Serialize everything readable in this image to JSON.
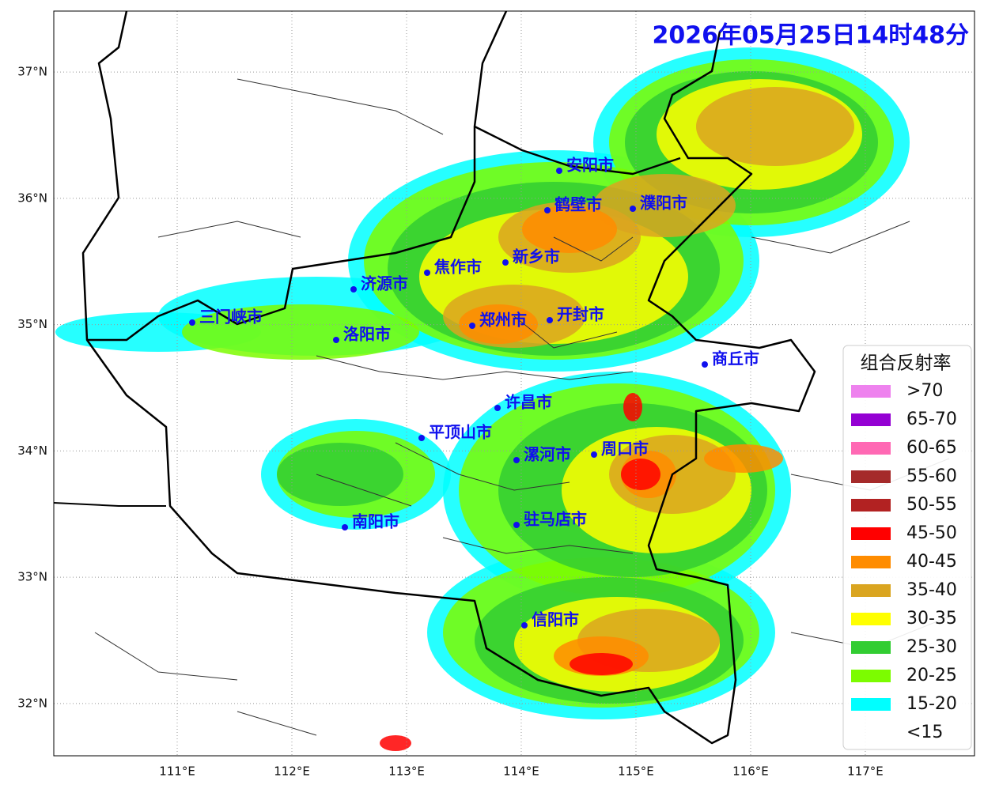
{
  "map": {
    "title": "2026年05月25日14时48分",
    "xlim": [
      109.924,
      117.952
    ],
    "ylim": [
      31.586,
      37.483
    ],
    "xticks": [
      {
        "value": 111,
        "label": "111°E"
      },
      {
        "value": 112,
        "label": "112°E"
      },
      {
        "value": 113,
        "label": "113°E"
      },
      {
        "value": 114,
        "label": "114°E"
      },
      {
        "value": 115,
        "label": "115°E"
      },
      {
        "value": 116,
        "label": "116°E"
      },
      {
        "value": 117,
        "label": "117°E"
      }
    ],
    "yticks": [
      {
        "value": 37,
        "label": "37°N"
      },
      {
        "value": 36,
        "label": "36°N"
      },
      {
        "value": 35,
        "label": "35°N"
      },
      {
        "value": 34,
        "label": "34°N"
      },
      {
        "value": 33,
        "label": "33°N"
      },
      {
        "value": 32,
        "label": "32°N"
      }
    ],
    "cities": [
      "安阳市",
      "鹤壁市",
      "濮阳市",
      "新乡市",
      "焦作市",
      "济源市",
      "三门峡市",
      "洛阳市",
      "郑州市",
      "开封市",
      "商丘市",
      "许昌市",
      "平顶山市",
      "漯河市",
      "周口市",
      "南阳市",
      "驻马店市",
      "信阳市"
    ],
    "legend": {
      "title": "组合反射率",
      "items": [
        {
          "label": ">70",
          "color": "#ee82ee"
        },
        {
          "label": "65-70",
          "color": "#9400d3"
        },
        {
          "label": "60-65",
          "color": "#ff69b4"
        },
        {
          "label": "55-60",
          "color": "#a52a2a"
        },
        {
          "label": "50-55",
          "color": "#b22222"
        },
        {
          "label": "45-50",
          "color": "#ff0000"
        },
        {
          "label": "40-45",
          "color": "#ff8c00"
        },
        {
          "label": "35-40",
          "color": "#daa520"
        },
        {
          "label": "30-35",
          "color": "#ffff00"
        },
        {
          "label": "25-30",
          "color": "#32cd32"
        },
        {
          "label": "20-25",
          "color": "#7cfc00"
        },
        {
          "label": "15-20",
          "color": "#00ffff"
        },
        {
          "label": "<15",
          "color": null
        }
      ]
    }
  }
}
